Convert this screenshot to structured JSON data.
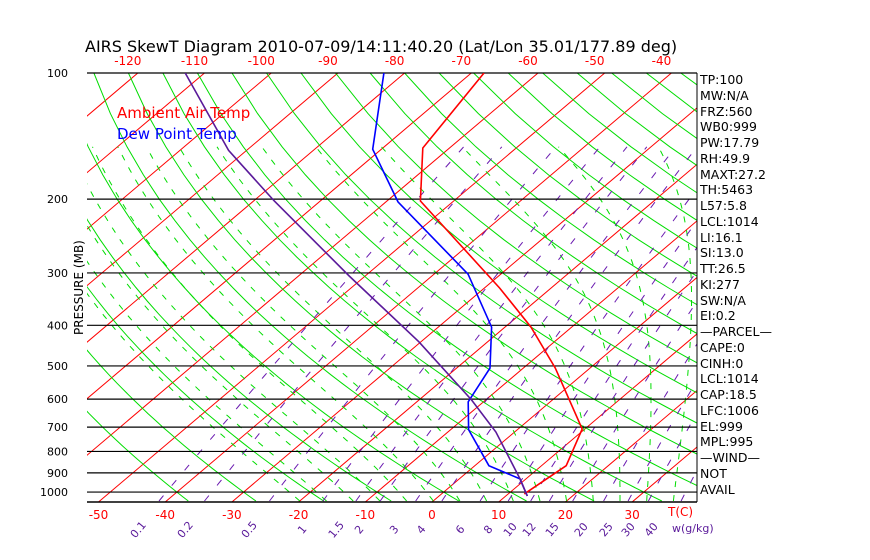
{
  "chart_data": {
    "type": "line",
    "title": "AIRS SkewT Diagram 2010-07-09/14:11:40.20 (Lat/Lon 35.01/177.89 deg)",
    "ylabel": "PRESSURE (MB)",
    "xlabel": "T(C)",
    "mixing_ratio_label": "w(g/kg)",
    "ylim": [
      1050,
      100
    ],
    "pressure_ticks": [
      100,
      200,
      300,
      400,
      500,
      600,
      700,
      800,
      900,
      1000
    ],
    "top_temp_ticks": [
      -120,
      -110,
      -100,
      -90,
      -80,
      -70,
      -60,
      -50,
      -40
    ],
    "bottom_temp_ticks": [
      -50,
      -40,
      -30,
      -20,
      -10,
      0,
      10,
      20,
      30
    ],
    "mixing_ratio_ticks": [
      "0.1",
      "0.2",
      "0.5",
      "1",
      "1.5",
      "2",
      "3",
      "4",
      "6",
      "8",
      "10",
      "12",
      "15",
      "20",
      "25",
      "30",
      "40"
    ],
    "legend": [
      {
        "label": "Ambient Air Temp",
        "color": "#ff0000"
      },
      {
        "label": "Dew Point Temp",
        "color": "#0000ff"
      }
    ],
    "series": [
      {
        "name": "Ambient Air Temp",
        "color": "#ff0000",
        "points": [
          [
            1010,
            12.4
          ],
          [
            865,
            13.7
          ],
          [
            707,
            9.6
          ],
          [
            506,
            -5.2
          ],
          [
            404,
            -16.1
          ],
          [
            326,
            -27.7
          ],
          [
            202,
            -55.0
          ],
          [
            151,
            -64.0
          ],
          [
            100,
            -68.1
          ]
        ]
      },
      {
        "name": "Dew Point Temp",
        "color": "#0000ff",
        "points": [
          [
            1021,
            13.2
          ],
          [
            930,
            9.1
          ],
          [
            865,
            2.1
          ],
          [
            710,
            -7.3
          ],
          [
            609,
            -12.3
          ],
          [
            506,
            -15.0
          ],
          [
            404,
            -22.0
          ],
          [
            302,
            -34.9
          ],
          [
            203,
            -58.2
          ],
          [
            152,
            -71.3
          ],
          [
            100,
            -83.1
          ]
        ]
      },
      {
        "name": "Parcel",
        "color": "#5a1a9a",
        "points": [
          [
            1021,
            13.2
          ],
          [
            930,
            9.1
          ],
          [
            719,
            -2.8
          ],
          [
            603,
            -12.1
          ],
          [
            438,
            -30.3
          ],
          [
            305,
            -52.4
          ],
          [
            202,
            -76.9
          ],
          [
            153,
            -92.7
          ],
          [
            100,
            -112.9
          ]
        ]
      }
    ],
    "colors": {
      "isotherm": "#ff0000",
      "dry_adiabat": "#00dd00",
      "moist_adiabat": "#00dd00",
      "mixing_ratio": "#6a1ab0",
      "axis": "#000000"
    }
  },
  "indices": [
    "TP:100",
    "MW:N/A",
    "FRZ:560",
    "WB0:999",
    "PW:17.79",
    "RH:49.9",
    "MAXT:27.2",
    "TH:5463",
    "L57:5.8",
    "LCL:1014",
    "LI:16.1",
    "SI:13.0",
    "TT:26.5",
    "KI:277",
    "SW:N/A",
    "EI:0.2",
    "—PARCEL—",
    "CAPE:0",
    "CINH:0",
    "LCL:1014",
    "CAP:18.5",
    "LFC:1006",
    "EL:999",
    "MPL:995",
    "—WIND—",
    "NOT",
    "AVAIL"
  ]
}
